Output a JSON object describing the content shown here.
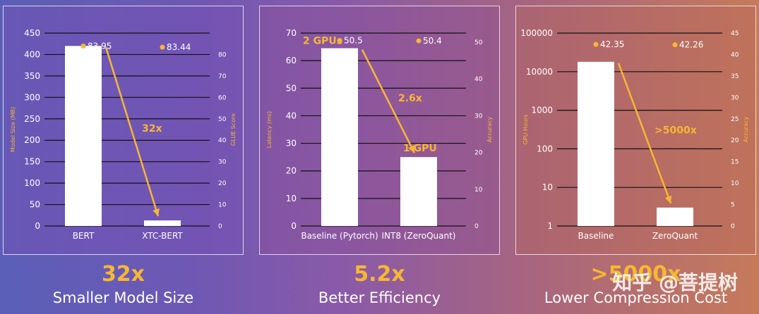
{
  "chart_data": [
    {
      "type": "bar",
      "categories": [
        "BERT",
        "XTC-BERT"
      ],
      "values": [
        420,
        13
      ],
      "ylabel": "Model Size (MB)",
      "ylim": [
        0,
        450
      ],
      "yticks": [
        "0",
        "50",
        "100",
        "150",
        "200",
        "250",
        "300",
        "350",
        "400",
        "450"
      ],
      "y2label": "GLUE Score",
      "y2lim": [
        0,
        90
      ],
      "y2ticks": [
        "0",
        "10",
        "20",
        "30",
        "40",
        "50",
        "60",
        "70",
        "80"
      ],
      "score_values": [
        83.95,
        83.44
      ],
      "score_labels": [
        "83.95",
        "83.44"
      ],
      "arrow_label": "32x",
      "summary_value": "32x",
      "summary_caption": "Smaller Model Size"
    },
    {
      "type": "bar",
      "categories": [
        "Baseline (Pytorch)",
        "INT8 (ZeroQuant)"
      ],
      "values": [
        64.5,
        25
      ],
      "ylabel": "Latency (ms)",
      "ylim": [
        0,
        70
      ],
      "yticks": [
        "0",
        "10",
        "20",
        "30",
        "40",
        "50",
        "60",
        "70"
      ],
      "y2label": "Accuracy",
      "y2lim": [
        0,
        52.5
      ],
      "y2ticks": [
        "0",
        "10",
        "20",
        "30",
        "40",
        "50"
      ],
      "score_values": [
        50.5,
        50.4
      ],
      "score_labels": [
        "50.5",
        "50.4"
      ],
      "bar_annotations": [
        "2 GPUs",
        "1 GPU"
      ],
      "arrow_label": "2.6x",
      "summary_value": "5.2x",
      "summary_caption": "Better Efficiency"
    },
    {
      "type": "bar",
      "scale": "log",
      "categories": [
        "Baseline",
        "ZeroQuant"
      ],
      "values": [
        18000,
        3
      ],
      "ylabel": "GPU Hours",
      "ylim": [
        1,
        100000
      ],
      "yticks": [
        "1",
        "10",
        "100",
        "1000",
        "10000",
        "100000"
      ],
      "y2label": "Accuracy",
      "y2lim": [
        0,
        45
      ],
      "y2ticks": [
        "0",
        "5",
        "10",
        "15",
        "20",
        "25",
        "30",
        "35",
        "40",
        "45"
      ],
      "score_values": [
        42.35,
        42.26
      ],
      "score_labels": [
        "42.35",
        "42.26"
      ],
      "arrow_label": ">5000x",
      "summary_value": ">5000x",
      "summary_caption": "Lower Compression Cost"
    }
  ],
  "colors": {
    "accent": "#f7b733",
    "bar": "#ffffff",
    "grid": "#111111"
  },
  "watermark": "知乎 @菩提树"
}
